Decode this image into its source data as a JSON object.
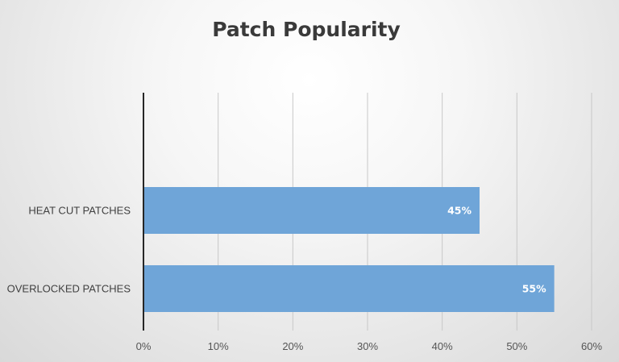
{
  "chart_data": {
    "type": "bar",
    "orientation": "horizontal",
    "title": "Patch Popularity",
    "categories": [
      "HEAT CUT PATCHES",
      "OVERLOCKED PATCHES"
    ],
    "values": [
      0.45,
      0.55
    ],
    "data_labels": [
      "45%",
      "55%"
    ],
    "xlim": [
      0,
      0.6
    ],
    "x_ticks": [
      0,
      0.1,
      0.2,
      0.3,
      0.4,
      0.5,
      0.6
    ],
    "x_tick_labels": [
      "0%",
      "10%",
      "20%",
      "30%",
      "40%",
      "50%",
      "60%"
    ],
    "xlabel": "",
    "ylabel": "",
    "grid": "vertical",
    "legend": "none"
  },
  "colors": {
    "bar": "#6fa5d8",
    "gridline": "#c8c8c8",
    "axis": "#262626"
  }
}
